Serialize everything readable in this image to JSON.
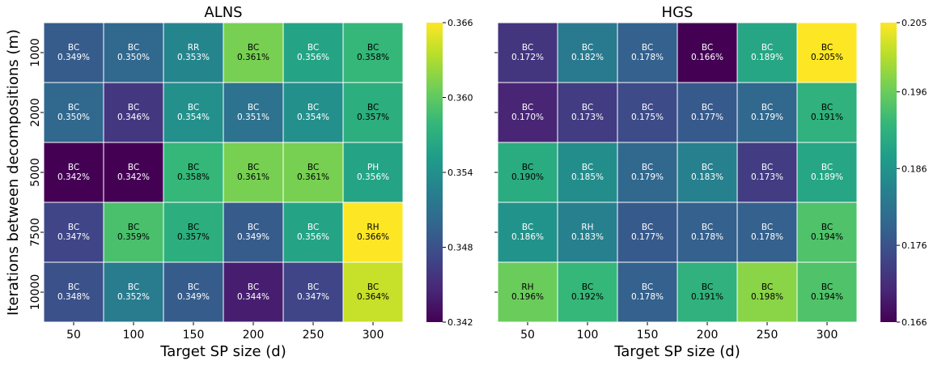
{
  "colorbar": {
    "colors": [
      "#440154",
      "#482878",
      "#3e4989",
      "#31688e",
      "#26828e",
      "#1f9e89",
      "#35b779",
      "#6ece58",
      "#b5de2b",
      "#fde725"
    ]
  },
  "chart_data": [
    {
      "type": "heatmap",
      "title": "ALNS",
      "xlabel": "Target SP size (d)",
      "ylabel": "Iterations between decompositions (m)",
      "x": [
        "50",
        "100",
        "150",
        "200",
        "250",
        "300"
      ],
      "y": [
        "1000",
        "2000",
        "5000",
        "7500",
        "10000"
      ],
      "labels": [
        [
          "BC",
          "BC",
          "RR",
          "BC",
          "BC",
          "BC"
        ],
        [
          "BC",
          "BC",
          "BC",
          "BC",
          "BC",
          "BC"
        ],
        [
          "BC",
          "BC",
          "BC",
          "BC",
          "BC",
          "PH"
        ],
        [
          "BC",
          "BC",
          "BC",
          "BC",
          "BC",
          "RH"
        ],
        [
          "BC",
          "BC",
          "BC",
          "BC",
          "BC",
          "BC"
        ]
      ],
      "values": [
        [
          0.349,
          0.35,
          0.353,
          0.361,
          0.356,
          0.358
        ],
        [
          0.35,
          0.346,
          0.354,
          0.351,
          0.354,
          0.357
        ],
        [
          0.342,
          0.342,
          0.358,
          0.361,
          0.361,
          0.356
        ],
        [
          0.347,
          0.359,
          0.357,
          0.349,
          0.356,
          0.366
        ],
        [
          0.348,
          0.352,
          0.349,
          0.344,
          0.347,
          0.364
        ]
      ],
      "vmin": 0.342,
      "vmax": 0.366,
      "colorbar_ticks": [
        "0.366",
        "0.360",
        "0.354",
        "0.348",
        "0.342"
      ],
      "colorbar_tick_values": [
        0.366,
        0.36,
        0.354,
        0.348,
        0.342
      ]
    },
    {
      "type": "heatmap",
      "title": "HGS",
      "xlabel": "Target SP size (d)",
      "ylabel": "",
      "x": [
        "50",
        "100",
        "150",
        "200",
        "250",
        "300"
      ],
      "y": [
        "1000",
        "2000",
        "5000",
        "7500",
        "10000"
      ],
      "labels": [
        [
          "BC",
          "BC",
          "BC",
          "BC",
          "BC",
          "BC"
        ],
        [
          "BC",
          "BC",
          "BC",
          "BC",
          "BC",
          "BC"
        ],
        [
          "BC",
          "BC",
          "BC",
          "BC",
          "BC",
          "BC"
        ],
        [
          "BC",
          "RH",
          "BC",
          "BC",
          "BC",
          "BC"
        ],
        [
          "RH",
          "BC",
          "BC",
          "BC",
          "BC",
          "BC"
        ]
      ],
      "values": [
        [
          0.172,
          0.182,
          0.178,
          0.166,
          0.189,
          0.205
        ],
        [
          0.17,
          0.173,
          0.175,
          0.177,
          0.179,
          0.191
        ],
        [
          0.19,
          0.185,
          0.179,
          0.183,
          0.173,
          0.189
        ],
        [
          0.186,
          0.183,
          0.177,
          0.178,
          0.178,
          0.194
        ],
        [
          0.196,
          0.192,
          0.178,
          0.191,
          0.198,
          0.194
        ]
      ],
      "vmin": 0.166,
      "vmax": 0.205,
      "colorbar_ticks": [
        "0.205",
        "0.196",
        "0.186",
        "0.176",
        "0.166"
      ],
      "colorbar_tick_values": [
        0.205,
        0.196,
        0.186,
        0.176,
        0.166
      ]
    }
  ]
}
